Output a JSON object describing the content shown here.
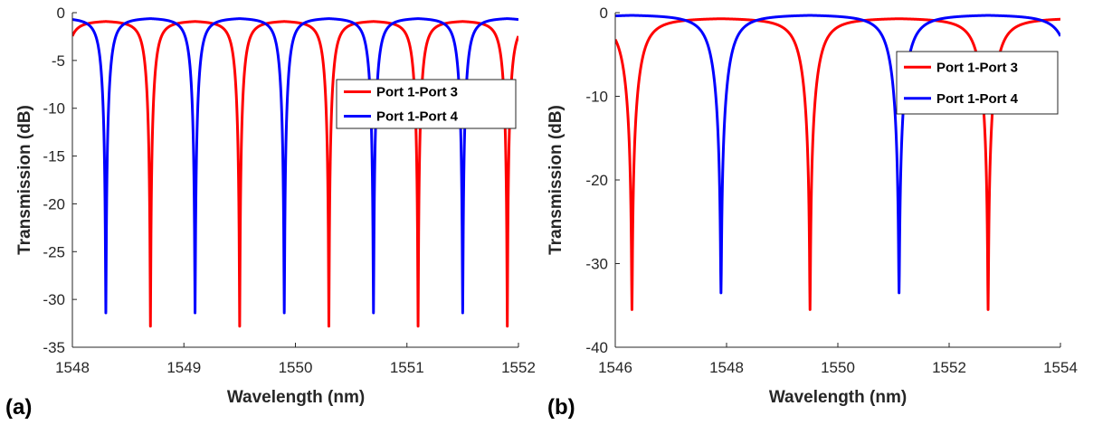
{
  "chart_data": [
    {
      "type": "line",
      "panel_label": "(a)",
      "xlabel": "Wavelength (nm)",
      "ylabel": "Transmission (dB)",
      "xlim": [
        1548,
        1552
      ],
      "ylim": [
        -35,
        0
      ],
      "xticks": [
        1548,
        1549,
        1550,
        1551,
        1552
      ],
      "yticks": [
        0,
        -5,
        -10,
        -15,
        -20,
        -25,
        -30,
        -35
      ],
      "legend_position": "top-right",
      "series": [
        {
          "name": "Port 1-Port 3",
          "color": "#ff0000",
          "period_nm": 0.8,
          "notch_wavelengths_nm": [
            1548.7,
            1549.5,
            1550.3,
            1551.1,
            1551.9
          ],
          "notch_depth_db": -32.8,
          "peak_db": -0.8
        },
        {
          "name": "Port 1-Port 4",
          "color": "#0000ff",
          "period_nm": 0.8,
          "notch_wavelengths_nm": [
            1548.3,
            1549.1,
            1549.9,
            1550.7,
            1551.5
          ],
          "notch_depth_db": -31.4,
          "peak_db": -0.5
        }
      ]
    },
    {
      "type": "line",
      "panel_label": "(b)",
      "xlabel": "Wavelength (nm)",
      "ylabel": "Transmission (dB)",
      "xlim": [
        1546,
        1554
      ],
      "ylim": [
        -40,
        0
      ],
      "xticks": [
        1546,
        1548,
        1550,
        1552,
        1554
      ],
      "yticks": [
        0,
        -10,
        -20,
        -30,
        -40
      ],
      "legend_position": "top-right",
      "series": [
        {
          "name": "Port 1-Port 3",
          "color": "#ff0000",
          "period_nm": 3.2,
          "notch_wavelengths_nm": [
            1546.3,
            1549.5,
            1552.7
          ],
          "notch_depth_db": -35.5,
          "peak_db": -0.6
        },
        {
          "name": "Port 1-Port 4",
          "color": "#0000ff",
          "period_nm": 3.2,
          "notch_wavelengths_nm": [
            1547.9,
            1551.1
          ],
          "notch_depth_db": -33.5,
          "peak_db": -0.2
        }
      ]
    }
  ]
}
